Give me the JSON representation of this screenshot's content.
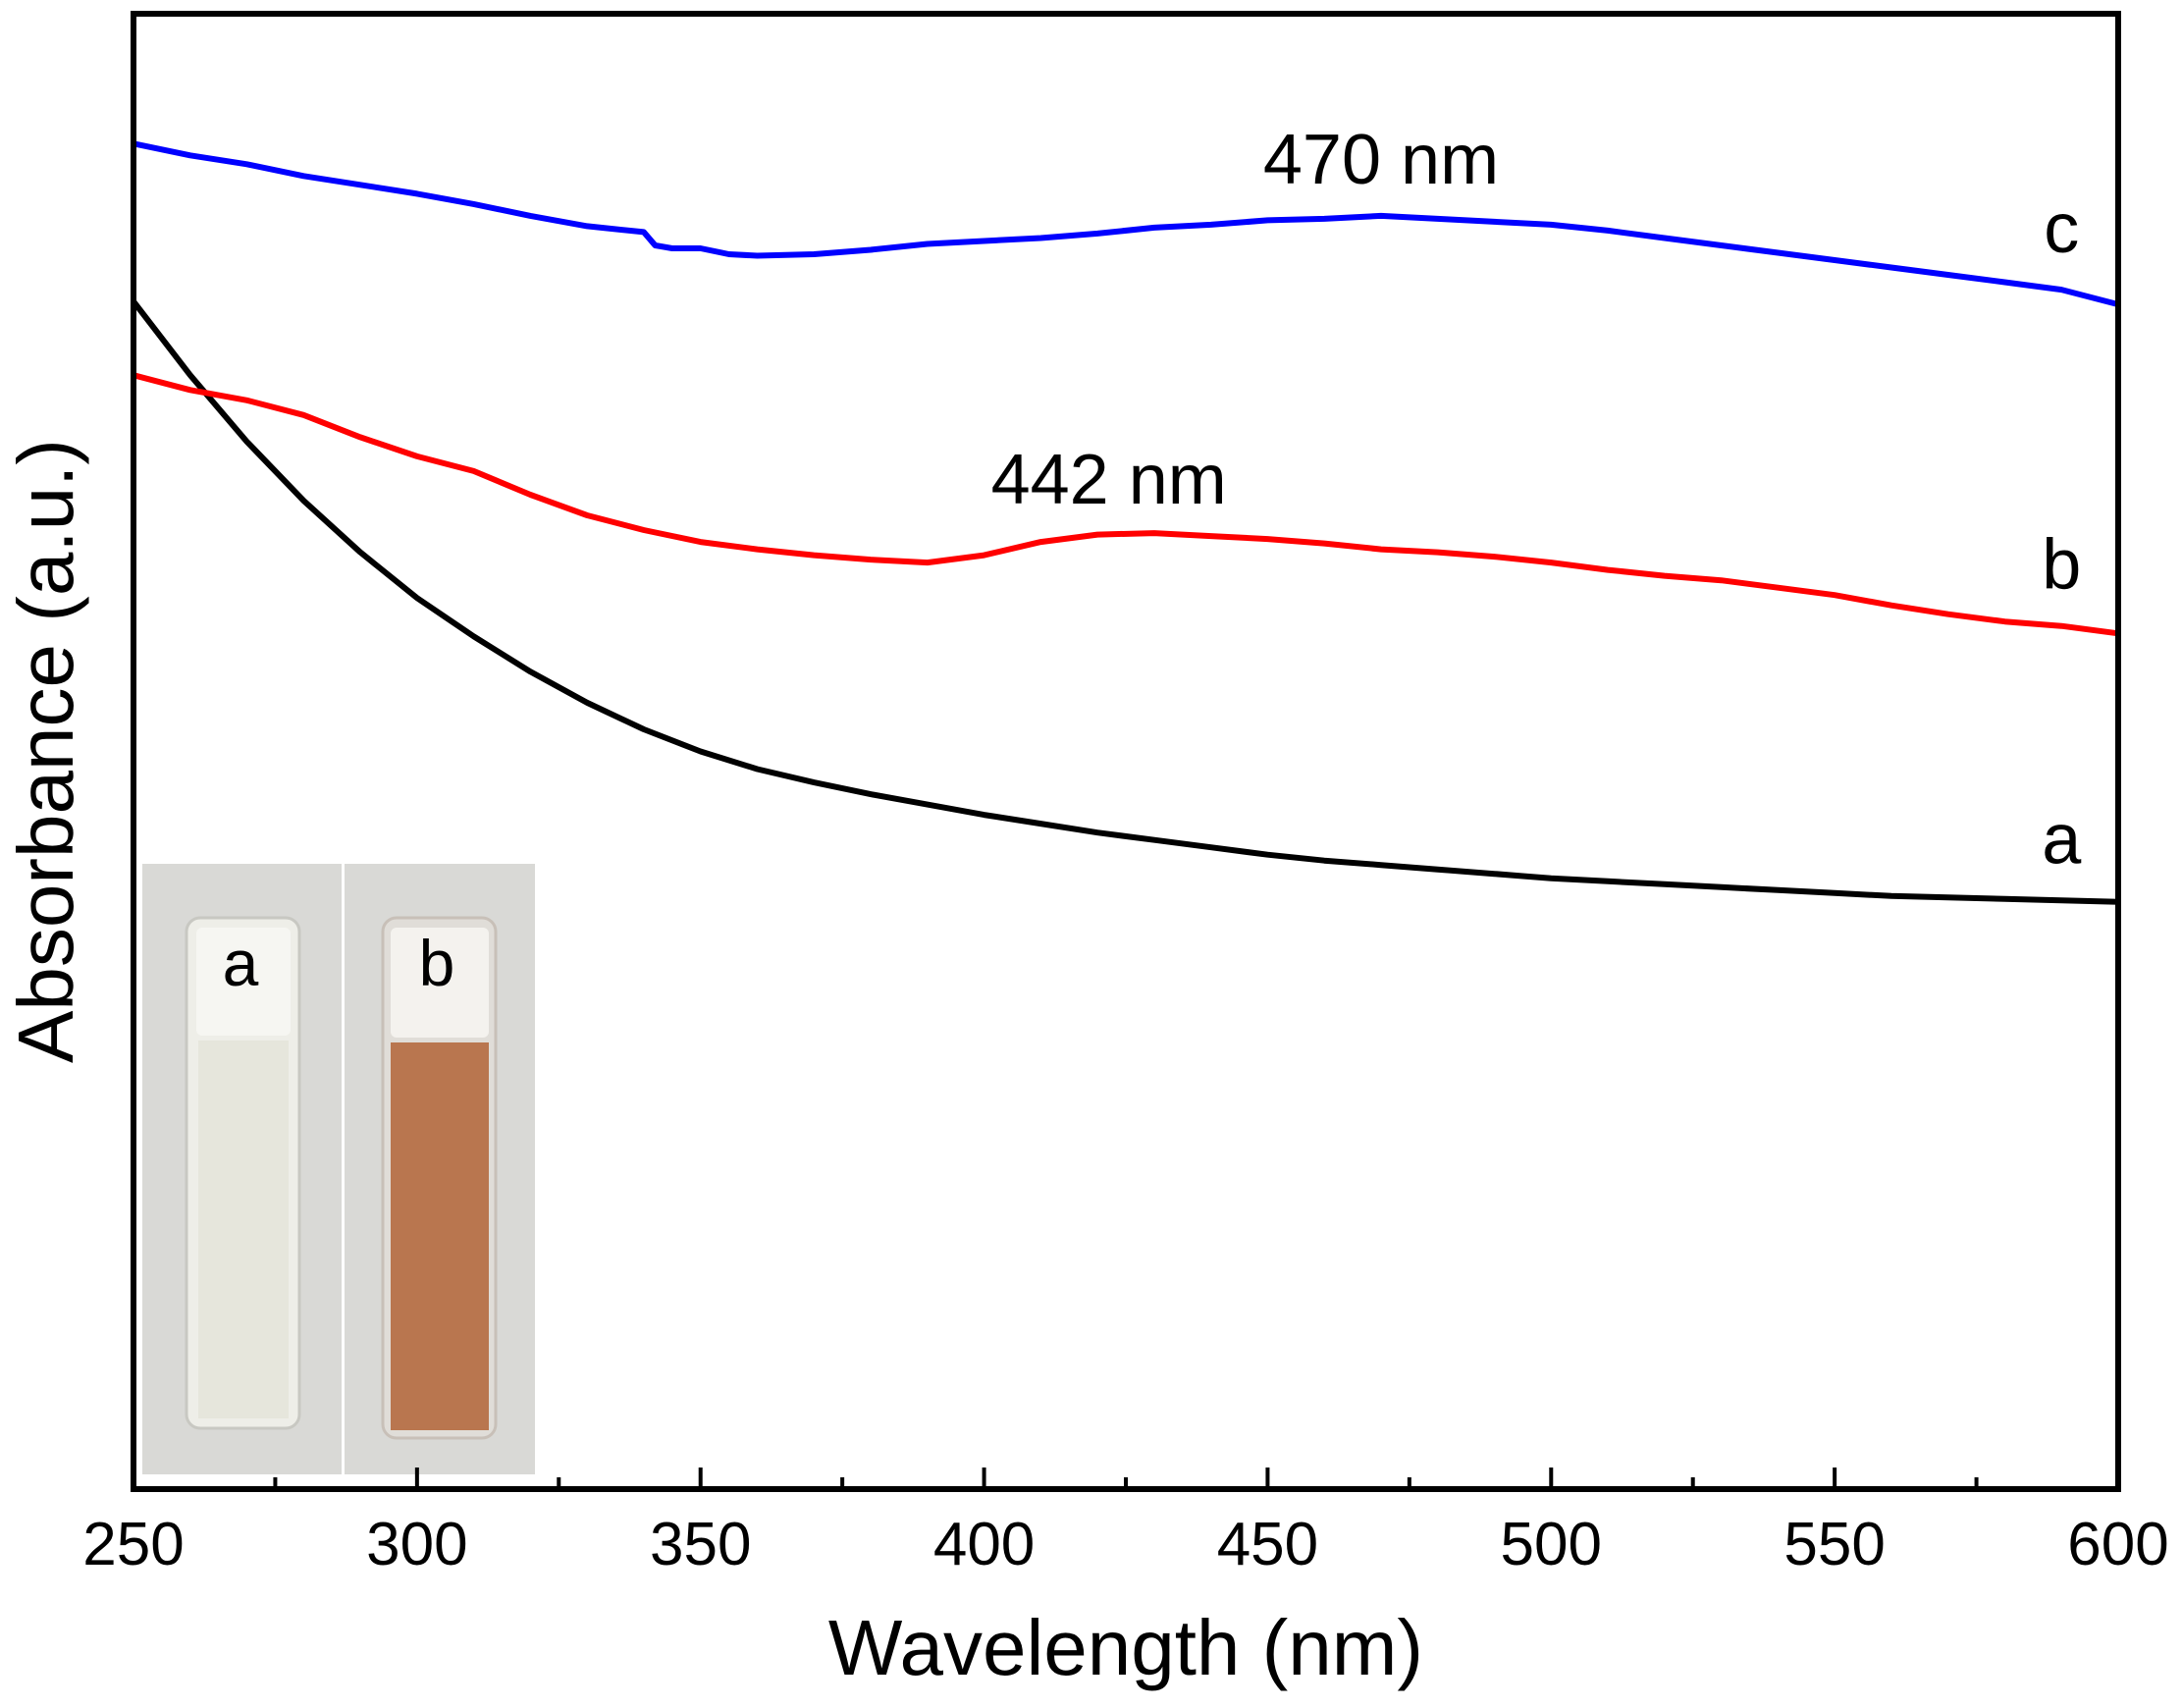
{
  "chart_data": {
    "type": "line",
    "title": "",
    "xlabel": "Wavelength (nm)",
    "ylabel": "Absorbance (a.u.)",
    "xlim": [
      250,
      600
    ],
    "ylim": [
      0,
      1
    ],
    "xticks": [
      250,
      300,
      350,
      400,
      450,
      500,
      550,
      600
    ],
    "xtick_labels": [
      "250",
      "300",
      "350",
      "400",
      "450",
      "500",
      "550",
      "600"
    ],
    "minor_xticks": [
      275,
      325,
      375,
      425,
      475,
      525,
      575
    ],
    "yticks_shown": false,
    "series": [
      {
        "name": "a",
        "color": "#000000",
        "x": [
          250,
          260,
          270,
          280,
          290,
          300,
          310,
          320,
          330,
          340,
          350,
          360,
          370,
          380,
          390,
          400,
          410,
          420,
          430,
          440,
          450,
          460,
          470,
          480,
          490,
          500,
          510,
          520,
          530,
          540,
          550,
          560,
          570,
          580,
          590,
          600
        ],
        "y": [
          0.805,
          0.755,
          0.71,
          0.67,
          0.635,
          0.604,
          0.578,
          0.554,
          0.533,
          0.515,
          0.5,
          0.488,
          0.479,
          0.471,
          0.464,
          0.457,
          0.451,
          0.445,
          0.44,
          0.435,
          0.43,
          0.426,
          0.423,
          0.42,
          0.417,
          0.414,
          0.412,
          0.41,
          0.408,
          0.406,
          0.404,
          0.402,
          0.401,
          0.4,
          0.399,
          0.398
        ]
      },
      {
        "name": "b",
        "color": "#ff0000",
        "x": [
          250,
          260,
          270,
          280,
          290,
          300,
          310,
          320,
          330,
          340,
          350,
          360,
          370,
          380,
          390,
          400,
          410,
          420,
          430,
          440,
          450,
          460,
          470,
          480,
          490,
          500,
          510,
          520,
          530,
          540,
          550,
          560,
          570,
          580,
          590,
          600
        ],
        "y": [
          0.755,
          0.745,
          0.738,
          0.728,
          0.713,
          0.7,
          0.69,
          0.674,
          0.66,
          0.65,
          0.642,
          0.637,
          0.633,
          0.63,
          0.628,
          0.633,
          0.642,
          0.647,
          0.648,
          0.646,
          0.644,
          0.641,
          0.637,
          0.635,
          0.632,
          0.628,
          0.623,
          0.619,
          0.616,
          0.611,
          0.606,
          0.599,
          0.593,
          0.588,
          0.585,
          0.58
        ]
      },
      {
        "name": "c",
        "color": "#0000ff",
        "x": [
          250,
          260,
          270,
          280,
          290,
          300,
          310,
          320,
          330,
          340,
          342,
          345,
          350,
          355,
          360,
          370,
          380,
          390,
          400,
          410,
          420,
          430,
          440,
          450,
          460,
          470,
          480,
          490,
          500,
          510,
          520,
          530,
          540,
          550,
          560,
          570,
          580,
          590,
          600
        ],
        "y": [
          0.912,
          0.904,
          0.898,
          0.89,
          0.884,
          0.878,
          0.871,
          0.863,
          0.856,
          0.852,
          0.843,
          0.841,
          0.841,
          0.837,
          0.836,
          0.837,
          0.84,
          0.844,
          0.846,
          0.848,
          0.851,
          0.855,
          0.857,
          0.86,
          0.861,
          0.863,
          0.861,
          0.859,
          0.857,
          0.853,
          0.848,
          0.843,
          0.838,
          0.833,
          0.828,
          0.823,
          0.818,
          0.813,
          0.803
        ]
      }
    ],
    "series_labels": [
      {
        "text": "a",
        "series": "a",
        "x": 590
      },
      {
        "text": "b",
        "series": "b",
        "x": 590
      },
      {
        "text": "c",
        "series": "c",
        "x": 590
      }
    ],
    "annotations": [
      {
        "text": "442 nm",
        "x": 422,
        "y": 0.668
      },
      {
        "text": "470 nm",
        "x": 470,
        "y": 0.885
      }
    ],
    "inset": {
      "description": "photo of two cuvettes",
      "labels": [
        "a",
        "b"
      ],
      "colors": {
        "cuvette_a": "#e6e6dc",
        "cuvette_b": "#b9764f",
        "background": "#d9d9d6"
      }
    }
  }
}
